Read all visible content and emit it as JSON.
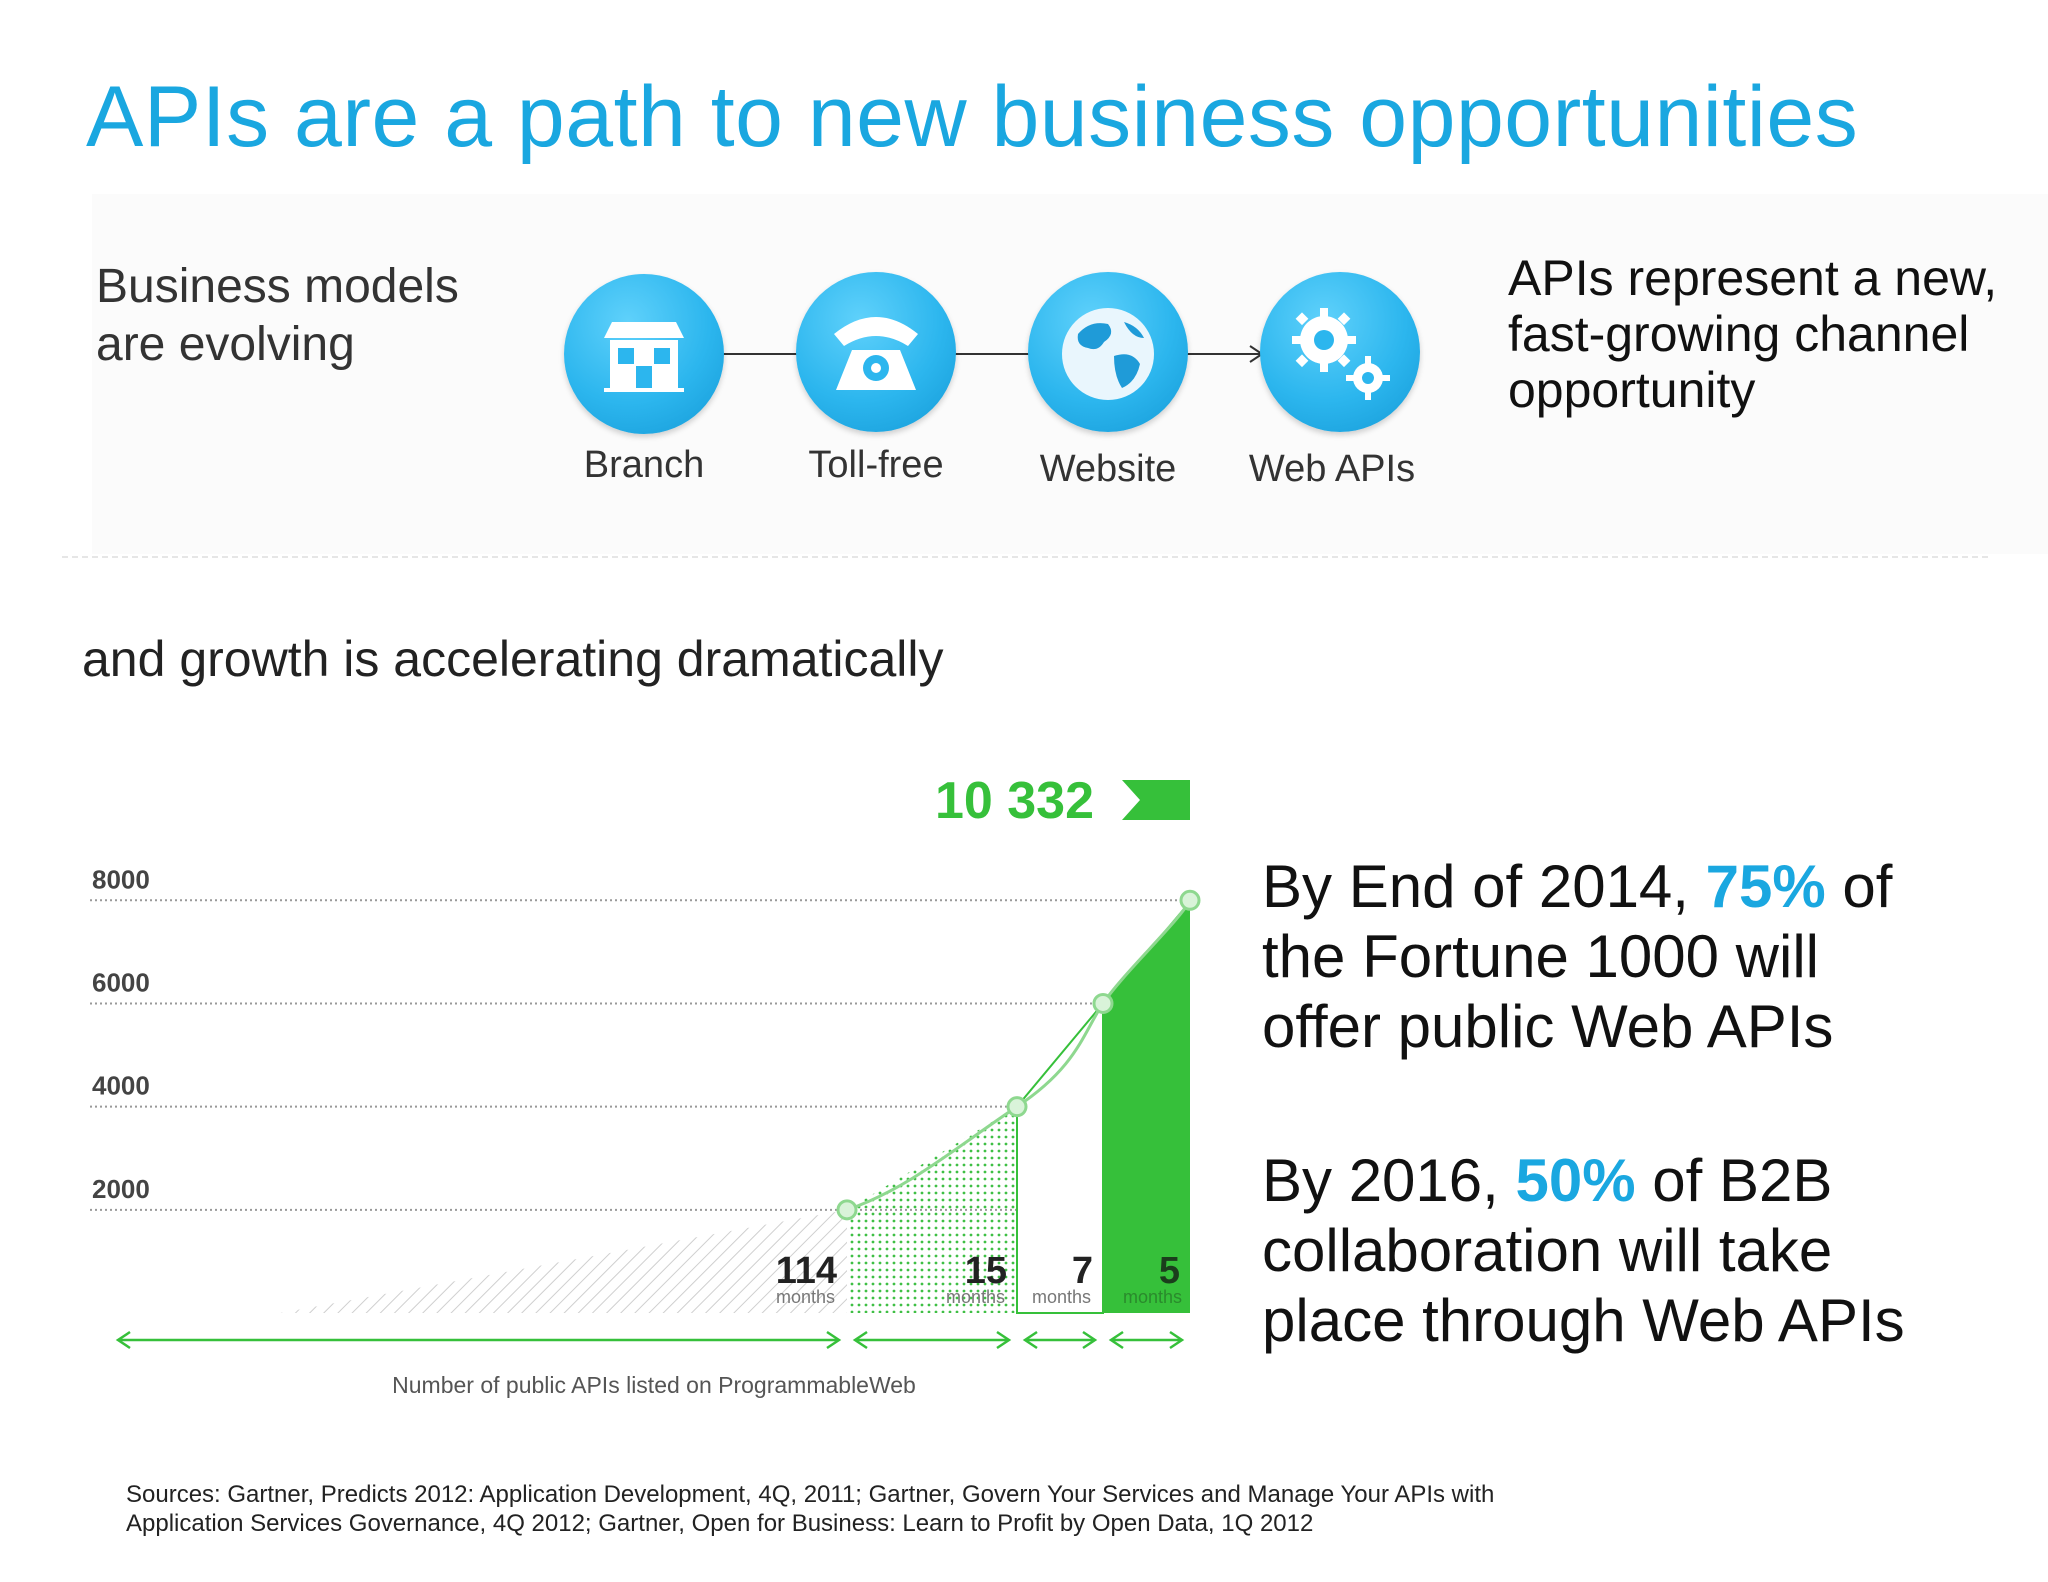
{
  "slide": {
    "title": "APIs are a path to new business opportunities",
    "models_line1": "Business models",
    "models_line2": "are evolving",
    "channel_line1": "APIs represent a new,",
    "channel_line2": "fast-growing channel",
    "channel_line3": "opportunity",
    "growth_heading": "and growth is accelerating dramatically"
  },
  "flow": [
    {
      "label": "Branch",
      "icon": "storefront-icon"
    },
    {
      "label": "Toll-free",
      "icon": "telephone-icon"
    },
    {
      "label": "Website",
      "icon": "globe-icon"
    },
    {
      "label": "Web APIs",
      "icon": "gears-icon"
    }
  ],
  "stats": {
    "s1_line1_pre": "By End of 2014, ",
    "s1_highlight": "75%",
    "s1_line1_post": " of",
    "s1_line2": "the Fortune 1000 will",
    "s1_line3": "offer public Web APIs",
    "s2_line1_pre": "By 2016, ",
    "s2_highlight": "50%",
    "s2_line1_post": " of B2B",
    "s2_line2": "collaboration will take",
    "s2_line3": "place through Web APIs"
  },
  "sources": {
    "line1": "Sources: Gartner, Predicts 2012: Application Development, 4Q, 2011; Gartner, Govern Your Services and Manage Your APIs with",
    "line2": "Application Services Governance, 4Q 2012; Gartner, Open for Business: Learn to Profit by Open Data, 1Q 2012"
  },
  "colors": {
    "title_blue": "#1aa7e0",
    "chart_green": "#36c03a",
    "chart_dark_green": "#2a8a2c"
  },
  "chart_data": {
    "type": "area",
    "xlabel": "Number of public APIs listed on ProgrammableWeb",
    "yticks": [
      2000,
      4000,
      6000,
      8000
    ],
    "ylim": [
      0,
      10332
    ],
    "final_label": "10 332",
    "points": [
      {
        "x": 0,
        "y": 0
      },
      {
        "x": 114,
        "y": 2000
      },
      {
        "x": 129,
        "y": 4000
      },
      {
        "x": 136,
        "y": 6000
      },
      {
        "x": 141,
        "y": 8000
      },
      {
        "x": 141,
        "y": 10332
      }
    ],
    "periods": [
      {
        "value": "114",
        "unit": "months"
      },
      {
        "value": "15",
        "unit": "months"
      },
      {
        "value": "7",
        "unit": "months"
      },
      {
        "value": "5",
        "unit": "months"
      }
    ]
  }
}
